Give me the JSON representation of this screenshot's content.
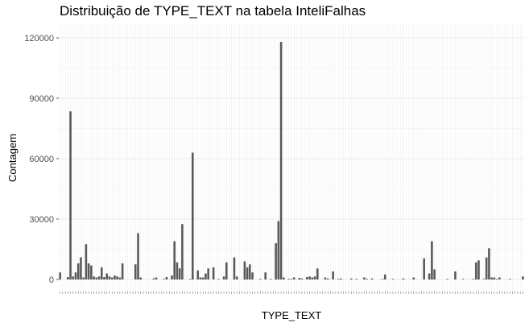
{
  "chart_data": {
    "type": "bar",
    "title": "Distribuição de TYPE_TEXT na tabela InteliFalhas",
    "xlabel": "TYPE_TEXT",
    "ylabel": "Contagem",
    "ylim": [
      0,
      125000
    ],
    "yticks": [
      0,
      30000,
      60000,
      90000,
      120000
    ],
    "ytick_labels": [
      "0",
      "30000",
      "60000",
      "90000",
      "120000"
    ],
    "grid": true,
    "bar_color": "#595959",
    "values": [
      3500,
      0,
      0,
      1200,
      83500,
      1500,
      3500,
      8000,
      11000,
      1000,
      17500,
      8000,
      7000,
      1500,
      1000,
      1500,
      6000,
      1200,
      3000,
      1500,
      1000,
      2000,
      1500,
      1000,
      8000,
      0,
      0,
      0,
      0,
      7500,
      23000,
      1000,
      0,
      0,
      0,
      0,
      500,
      1000,
      0,
      0,
      300,
      1200,
      0,
      2000,
      19000,
      8500,
      5500,
      27500,
      0,
      0,
      300,
      63000,
      0,
      4500,
      1000,
      1000,
      3000,
      5500,
      0,
      6000,
      0,
      300,
      0,
      1500,
      8500,
      0,
      0,
      11000,
      1500,
      0,
      0,
      9000,
      6000,
      7500,
      3500,
      0,
      0,
      300,
      0,
      3500,
      0,
      300,
      0,
      18000,
      29000,
      118000,
      1000,
      0,
      300,
      300,
      1000,
      0,
      800,
      500,
      0,
      1200,
      1500,
      1000,
      1500,
      5500,
      0,
      0,
      1000,
      500,
      0,
      4000,
      0,
      300,
      500,
      0,
      0,
      0,
      500,
      0,
      300,
      0,
      0,
      1000,
      300,
      0,
      500,
      0,
      0,
      0,
      300,
      2500,
      0,
      0,
      300,
      0,
      0,
      0,
      500,
      0,
      0,
      0,
      1000,
      0,
      0,
      0,
      10500,
      0,
      3000,
      19000,
      5000,
      0,
      0,
      0,
      0,
      300,
      0,
      0,
      4000,
      0,
      0,
      300,
      0,
      0,
      0,
      300,
      8500,
      9500,
      0,
      300,
      11000,
      15500,
      1000,
      1000,
      300,
      1000,
      0,
      0,
      0,
      300,
      0,
      0,
      0,
      0,
      1500
    ]
  }
}
